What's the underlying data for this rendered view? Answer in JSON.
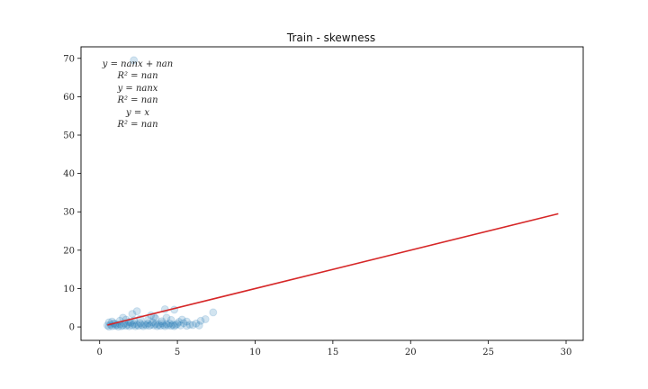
{
  "chart_data": {
    "type": "scatter",
    "title": "Train - skewness",
    "xlabel": "",
    "ylabel": "",
    "xlim": [
      -1.2,
      31.1
    ],
    "ylim": [
      -3.5,
      73.0
    ],
    "xticks": [
      0,
      5,
      10,
      15,
      20,
      25,
      30
    ],
    "yticks": [
      0,
      10,
      20,
      30,
      40,
      50,
      60,
      70
    ],
    "grid": false,
    "annotations": [
      "y = nanx + nan",
      "R² = nan",
      "y = nanx",
      "R² = nan",
      "y = x",
      "R² = nan"
    ],
    "series": [
      {
        "kind": "scatter",
        "color": "#1f77b4",
        "opacity": 0.2,
        "points": [
          [
            0.5,
            0.4
          ],
          [
            0.6,
            0.1
          ],
          [
            0.7,
            0.6
          ],
          [
            0.8,
            0.2
          ],
          [
            0.9,
            0.9
          ],
          [
            1.0,
            0.3
          ],
          [
            1.1,
            0.5
          ],
          [
            1.2,
            0.1
          ],
          [
            1.3,
            0.7
          ],
          [
            1.4,
            0.2
          ],
          [
            1.5,
            0.4
          ],
          [
            1.6,
            0.9
          ],
          [
            1.7,
            0.3
          ],
          [
            1.8,
            0.6
          ],
          [
            1.9,
            0.2
          ],
          [
            2.0,
            1.1
          ],
          [
            2.1,
            0.4
          ],
          [
            2.2,
            0.8
          ],
          [
            2.3,
            0.2
          ],
          [
            2.4,
            0.6
          ],
          [
            2.5,
            0.3
          ],
          [
            2.6,
            1.0
          ],
          [
            2.7,
            0.5
          ],
          [
            2.8,
            0.2
          ],
          [
            2.9,
            0.7
          ],
          [
            3.0,
            0.4
          ],
          [
            3.1,
            0.9
          ],
          [
            3.2,
            0.3
          ],
          [
            3.3,
            0.6
          ],
          [
            3.4,
            1.2
          ],
          [
            3.5,
            0.4
          ],
          [
            3.6,
            0.8
          ],
          [
            3.7,
            0.2
          ],
          [
            3.8,
            0.6
          ],
          [
            3.9,
            0.3
          ],
          [
            4.0,
            1.0
          ],
          [
            4.1,
            0.5
          ],
          [
            4.2,
            0.2
          ],
          [
            4.3,
            0.7
          ],
          [
            4.4,
            0.4
          ],
          [
            4.5,
            0.9
          ],
          [
            4.6,
            0.3
          ],
          [
            4.7,
            0.6
          ],
          [
            4.8,
            0.2
          ],
          [
            4.9,
            0.5
          ],
          [
            5.0,
            0.8
          ],
          [
            5.2,
            0.4
          ],
          [
            5.4,
            1.0
          ],
          [
            5.6,
            0.3
          ],
          [
            5.8,
            0.6
          ],
          [
            6.0,
            0.5
          ],
          [
            6.2,
            0.9
          ],
          [
            6.4,
            0.4
          ],
          [
            0.8,
            1.4
          ],
          [
            1.3,
            1.6
          ],
          [
            1.7,
            1.9
          ],
          [
            2.2,
            1.7
          ],
          [
            2.6,
            2.1
          ],
          [
            3.1,
            1.8
          ],
          [
            3.6,
            2.2
          ],
          [
            4.0,
            1.5
          ],
          [
            4.6,
            1.8
          ],
          [
            5.1,
            1.3
          ],
          [
            2.1,
            3.4
          ],
          [
            2.4,
            4.1
          ],
          [
            3.5,
            2.6
          ],
          [
            4.2,
            4.6
          ],
          [
            4.3,
            2.4
          ],
          [
            4.8,
            4.5
          ],
          [
            5.3,
            1.9
          ],
          [
            5.6,
            1.4
          ],
          [
            6.5,
            1.6
          ],
          [
            6.8,
            2.0
          ],
          [
            7.3,
            3.8
          ],
          [
            2.2,
            69.5
          ],
          [
            1.5,
            2.4
          ],
          [
            3.3,
            3.0
          ],
          [
            0.6,
            1.2
          ],
          [
            1.0,
            0.8
          ],
          [
            1.9,
            1.3
          ]
        ]
      },
      {
        "kind": "line",
        "label": "",
        "color": "#d62728",
        "x": [
          0.5,
          29.5
        ],
        "y": [
          0.5,
          29.5
        ]
      }
    ]
  }
}
